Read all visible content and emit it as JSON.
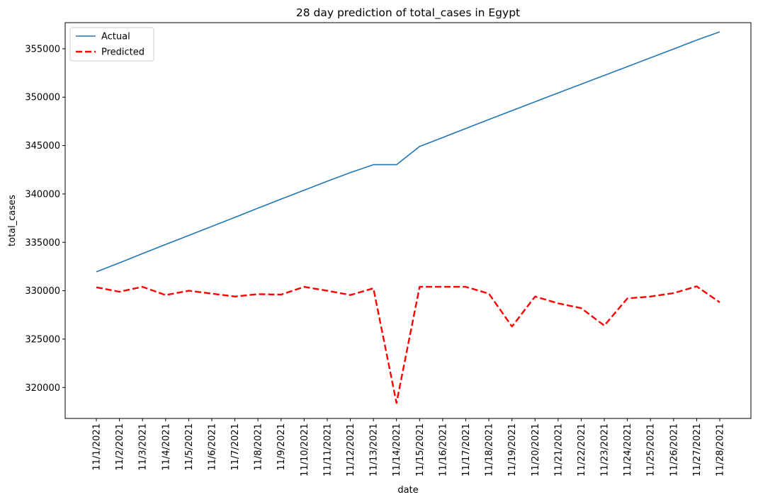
{
  "chart_data": {
    "type": "line",
    "title": "28 day prediction of total_cases in Egypt",
    "xlabel": "date",
    "ylabel": "total_cases",
    "ylim": [
      316800,
      357700
    ],
    "yticks": [
      320000,
      325000,
      330000,
      335000,
      340000,
      345000,
      350000,
      355000
    ],
    "grid": false,
    "legend_position": "top-left",
    "categories": [
      "11/1/2021",
      "11/2/2021",
      "11/3/2021",
      "11/4/2021",
      "11/5/2021",
      "11/6/2021",
      "11/7/2021",
      "11/8/2021",
      "11/9/2021",
      "11/10/2021",
      "11/11/2021",
      "11/12/2021",
      "11/13/2021",
      "11/14/2021",
      "11/15/2021",
      "11/16/2021",
      "11/17/2021",
      "11/18/2021",
      "11/19/2021",
      "11/20/2021",
      "11/21/2021",
      "11/22/2021",
      "11/23/2021",
      "11/24/2021",
      "11/25/2021",
      "11/26/2021",
      "11/27/2021",
      "11/28/2021"
    ],
    "series": [
      {
        "name": "Actual",
        "color": "#1f77b4",
        "style": "solid",
        "values": [
          331950,
          332880,
          333840,
          334780,
          335710,
          336650,
          337580,
          338530,
          339460,
          340390,
          341310,
          342200,
          343020,
          343020,
          344900,
          345830,
          346760,
          347690,
          348610,
          349530,
          350440,
          351340,
          352250,
          353160,
          354070,
          354980,
          355900,
          356750
        ]
      },
      {
        "name": "Predicted",
        "color": "#ff0000",
        "style": "dashed",
        "values": [
          330350,
          329900,
          330400,
          329550,
          330000,
          329700,
          329400,
          329650,
          329600,
          330400,
          330000,
          329550,
          330250,
          318400,
          330400,
          330400,
          330400,
          329700,
          326300,
          329400,
          328700,
          328200,
          326400,
          329200,
          329400,
          329750,
          330450,
          328800
        ]
      }
    ]
  }
}
